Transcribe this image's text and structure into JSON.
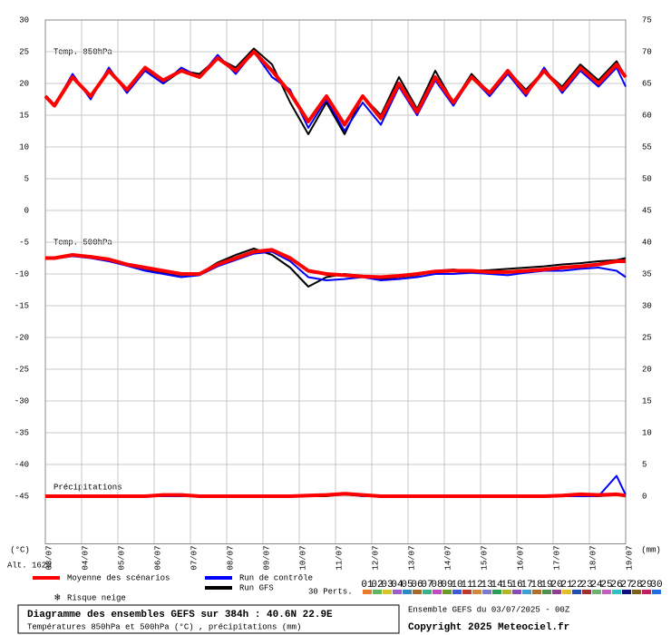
{
  "chart_data": {
    "type": "line",
    "y_label": "(°C)",
    "y2_label": "(mm)",
    "altitude": "Alt. 162m",
    "panel_labels": {
      "temp850": "Temp. 850hPa",
      "temp500": "Temp. 500hPa",
      "precip": "Précipitations"
    },
    "xlim": [
      0,
      384
    ],
    "xticks": [
      {
        "value": 0,
        "label": "03/07"
      },
      {
        "value": 24,
        "label": "04/07"
      },
      {
        "value": 48,
        "label": "05/07"
      },
      {
        "value": 72,
        "label": "06/07"
      },
      {
        "value": 96,
        "label": "07/07"
      },
      {
        "value": 120,
        "label": "08/07"
      },
      {
        "value": 144,
        "label": "09/07"
      },
      {
        "value": 168,
        "label": "10/07"
      },
      {
        "value": 192,
        "label": "11/07"
      },
      {
        "value": 216,
        "label": "12/07"
      },
      {
        "value": 240,
        "label": "13/07"
      },
      {
        "value": 264,
        "label": "14/07"
      },
      {
        "value": 288,
        "label": "15/07"
      },
      {
        "value": 312,
        "label": "16/07"
      },
      {
        "value": 336,
        "label": "17/07"
      },
      {
        "value": 360,
        "label": "18/07"
      },
      {
        "value": 384,
        "label": "19/07"
      }
    ],
    "ylim": [
      -52.5,
      30
    ],
    "yticks": [
      30,
      25,
      20,
      15,
      10,
      5,
      0,
      -5,
      -10,
      -15,
      -20,
      -25,
      -30,
      -35,
      -40,
      -45
    ],
    "y2lim": [
      -7.5,
      75
    ],
    "y2ticks": [
      75,
      70,
      65,
      60,
      55,
      50,
      45,
      40,
      35,
      30,
      25,
      20,
      15,
      10,
      5,
      0
    ],
    "x": [
      0,
      6,
      18,
      30,
      42,
      54,
      66,
      78,
      90,
      102,
      114,
      126,
      138,
      150,
      162,
      174,
      186,
      198,
      210,
      222,
      234,
      246,
      258,
      270,
      282,
      294,
      306,
      318,
      330,
      342,
      354,
      366,
      378,
      384
    ],
    "series": [
      {
        "name": "Moyenne des scénarios",
        "color": "#ff0000",
        "width": 4,
        "temp850": [
          18,
          16.5,
          21,
          18,
          22,
          19,
          22.5,
          20.5,
          22,
          21,
          24,
          22,
          25,
          22,
          18.5,
          14,
          18,
          13.5,
          18,
          14.5,
          20,
          15.5,
          21,
          17,
          21,
          18.5,
          22,
          18.5,
          22,
          19,
          22.5,
          20,
          23,
          21
        ],
        "temp500": [
          -7.5,
          -7.5,
          -7,
          -7.3,
          -7.7,
          -8.5,
          -9,
          -9.5,
          -10,
          -10,
          -8.5,
          -7.5,
          -6.5,
          -6.2,
          -7.5,
          -9.5,
          -10,
          -10.2,
          -10.4,
          -10.5,
          -10.3,
          -10,
          -9.6,
          -9.5,
          -9.5,
          -9.7,
          -9.7,
          -9.5,
          -9.3,
          -9,
          -8.8,
          -8.5,
          -8,
          -8
        ],
        "precip": [
          0,
          0,
          0,
          0,
          0,
          0,
          0,
          0.2,
          0.2,
          0,
          0,
          0,
          0,
          0,
          0,
          0.1,
          0.2,
          0.4,
          0.2,
          0,
          0,
          0,
          0,
          0,
          0,
          0,
          0,
          0,
          0,
          0.1,
          0.3,
          0.2,
          0.3,
          0.1
        ]
      },
      {
        "name": "Run de contrôle",
        "color": "#0000ff",
        "width": 2,
        "temp850": [
          18,
          16.5,
          21.5,
          17.5,
          22.5,
          18.5,
          22,
          20,
          22.5,
          21,
          24.5,
          21.5,
          25,
          21,
          19,
          13,
          17.5,
          12.5,
          17,
          13.5,
          19.5,
          15,
          20.5,
          16.5,
          21,
          18,
          21.5,
          18,
          22.5,
          18.5,
          22,
          19.5,
          22.5,
          19.5
        ],
        "temp500": [
          -7.5,
          -7.6,
          -7.2,
          -7.5,
          -8,
          -8.7,
          -9.5,
          -10,
          -10.5,
          -10.2,
          -8.8,
          -7.8,
          -6.8,
          -6.5,
          -8,
          -10.5,
          -11,
          -10.8,
          -10.5,
          -11,
          -10.8,
          -10.5,
          -10,
          -10,
          -9.8,
          -10,
          -10.2,
          -9.8,
          -9.5,
          -9.5,
          -9.2,
          -9,
          -9.5,
          -10.5
        ],
        "precip": [
          0,
          0,
          0,
          0,
          0,
          0,
          0,
          0,
          0,
          0,
          0,
          0,
          0,
          0,
          0,
          0,
          0.2,
          0.5,
          0,
          0,
          0,
          0,
          0,
          0,
          0,
          0,
          0,
          0,
          0,
          0,
          0,
          0,
          3.2,
          0.2
        ]
      },
      {
        "name": "Run GFS",
        "color": "#000000",
        "width": 2,
        "temp850": [
          18,
          16.5,
          21,
          18,
          22,
          19,
          22,
          20,
          22,
          21.5,
          24,
          22.5,
          25.5,
          23,
          17,
          12,
          17,
          12,
          18,
          15,
          21,
          16,
          22,
          17,
          21.5,
          18.5,
          22,
          19,
          22,
          19.5,
          23,
          20.5,
          23.5,
          21
        ],
        "temp500": [
          -7.5,
          -7.4,
          -7,
          -7.2,
          -7.8,
          -8.7,
          -9.2,
          -9.8,
          -10.2,
          -10,
          -8.2,
          -7,
          -6,
          -7,
          -9,
          -12,
          -10.5,
          -10,
          -10.3,
          -10.8,
          -10.5,
          -10.2,
          -9.5,
          -9.3,
          -9.5,
          -9.4,
          -9.2,
          -9,
          -8.8,
          -8.5,
          -8.3,
          -8,
          -7.8,
          -7.5
        ],
        "precip": [
          0,
          0,
          0,
          0,
          0,
          0,
          0,
          0,
          0.3,
          0,
          0,
          0,
          0,
          0,
          0,
          0,
          0,
          0.3,
          0,
          0,
          0,
          0,
          0,
          0,
          0,
          0,
          0,
          0,
          0,
          0.2,
          0,
          0,
          0.2,
          0
        ]
      }
    ],
    "snow_label": "Risque neige",
    "perturbations": {
      "label": "30 Perts.",
      "names": [
        "01",
        "02",
        "03",
        "04",
        "05",
        "06",
        "07",
        "08",
        "09",
        "10",
        "11",
        "12",
        "13",
        "14",
        "15",
        "16",
        "17",
        "18",
        "19",
        "20",
        "21",
        "22",
        "23",
        "24",
        "25",
        "26",
        "27",
        "28",
        "29",
        "30"
      ],
      "colors": [
        "#e87b2c",
        "#5db85d",
        "#d7c62a",
        "#9c5bc7",
        "#2e8bc0",
        "#a56a2b",
        "#3fae8c",
        "#c04bc0",
        "#6a9a2a",
        "#3b5dd1",
        "#c0392b",
        "#d08b3a",
        "#7b7bd0",
        "#2aa05a",
        "#b5b52a",
        "#8a4bb5",
        "#40a0d0",
        "#b07030",
        "#509050",
        "#904090",
        "#e0c020",
        "#2050b0",
        "#a03030",
        "#70b070",
        "#c060c0",
        "#30c0c0",
        "#101080",
        "#806020",
        "#c02060",
        "#2070e0"
      ]
    },
    "footer": {
      "title": "Diagramme des ensembles GEFS sur 384h : 40.6N 22.9E",
      "subtitle": "Températures 850hPa et 500hPa (°C) , précipitations (mm)",
      "run": "Ensemble GEFS du 03/07/2025 - 00Z",
      "copyright": "Copyright 2025 Meteociel.fr"
    }
  }
}
